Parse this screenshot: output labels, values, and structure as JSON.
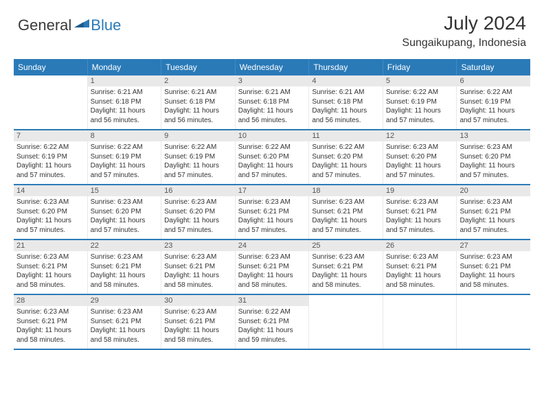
{
  "brand": {
    "general": "General",
    "blue": "Blue"
  },
  "title": "July 2024",
  "location": "Sungaikupang, Indonesia",
  "colors": {
    "header_bg": "#2a7ab8",
    "header_text": "#ffffff",
    "daynum_bg": "#e9e9e9",
    "text": "#333333",
    "week_border": "#2a7ab8"
  },
  "day_headers": [
    "Sunday",
    "Monday",
    "Tuesday",
    "Wednesday",
    "Thursday",
    "Friday",
    "Saturday"
  ],
  "weeks": [
    [
      {
        "empty": true
      },
      {
        "day": "1",
        "sunrise": "Sunrise: 6:21 AM",
        "sunset": "Sunset: 6:18 PM",
        "daylight1": "Daylight: 11 hours",
        "daylight2": "and 56 minutes."
      },
      {
        "day": "2",
        "sunrise": "Sunrise: 6:21 AM",
        "sunset": "Sunset: 6:18 PM",
        "daylight1": "Daylight: 11 hours",
        "daylight2": "and 56 minutes."
      },
      {
        "day": "3",
        "sunrise": "Sunrise: 6:21 AM",
        "sunset": "Sunset: 6:18 PM",
        "daylight1": "Daylight: 11 hours",
        "daylight2": "and 56 minutes."
      },
      {
        "day": "4",
        "sunrise": "Sunrise: 6:21 AM",
        "sunset": "Sunset: 6:18 PM",
        "daylight1": "Daylight: 11 hours",
        "daylight2": "and 56 minutes."
      },
      {
        "day": "5",
        "sunrise": "Sunrise: 6:22 AM",
        "sunset": "Sunset: 6:19 PM",
        "daylight1": "Daylight: 11 hours",
        "daylight2": "and 57 minutes."
      },
      {
        "day": "6",
        "sunrise": "Sunrise: 6:22 AM",
        "sunset": "Sunset: 6:19 PM",
        "daylight1": "Daylight: 11 hours",
        "daylight2": "and 57 minutes."
      }
    ],
    [
      {
        "day": "7",
        "sunrise": "Sunrise: 6:22 AM",
        "sunset": "Sunset: 6:19 PM",
        "daylight1": "Daylight: 11 hours",
        "daylight2": "and 57 minutes."
      },
      {
        "day": "8",
        "sunrise": "Sunrise: 6:22 AM",
        "sunset": "Sunset: 6:19 PM",
        "daylight1": "Daylight: 11 hours",
        "daylight2": "and 57 minutes."
      },
      {
        "day": "9",
        "sunrise": "Sunrise: 6:22 AM",
        "sunset": "Sunset: 6:19 PM",
        "daylight1": "Daylight: 11 hours",
        "daylight2": "and 57 minutes."
      },
      {
        "day": "10",
        "sunrise": "Sunrise: 6:22 AM",
        "sunset": "Sunset: 6:20 PM",
        "daylight1": "Daylight: 11 hours",
        "daylight2": "and 57 minutes."
      },
      {
        "day": "11",
        "sunrise": "Sunrise: 6:22 AM",
        "sunset": "Sunset: 6:20 PM",
        "daylight1": "Daylight: 11 hours",
        "daylight2": "and 57 minutes."
      },
      {
        "day": "12",
        "sunrise": "Sunrise: 6:23 AM",
        "sunset": "Sunset: 6:20 PM",
        "daylight1": "Daylight: 11 hours",
        "daylight2": "and 57 minutes."
      },
      {
        "day": "13",
        "sunrise": "Sunrise: 6:23 AM",
        "sunset": "Sunset: 6:20 PM",
        "daylight1": "Daylight: 11 hours",
        "daylight2": "and 57 minutes."
      }
    ],
    [
      {
        "day": "14",
        "sunrise": "Sunrise: 6:23 AM",
        "sunset": "Sunset: 6:20 PM",
        "daylight1": "Daylight: 11 hours",
        "daylight2": "and 57 minutes."
      },
      {
        "day": "15",
        "sunrise": "Sunrise: 6:23 AM",
        "sunset": "Sunset: 6:20 PM",
        "daylight1": "Daylight: 11 hours",
        "daylight2": "and 57 minutes."
      },
      {
        "day": "16",
        "sunrise": "Sunrise: 6:23 AM",
        "sunset": "Sunset: 6:20 PM",
        "daylight1": "Daylight: 11 hours",
        "daylight2": "and 57 minutes."
      },
      {
        "day": "17",
        "sunrise": "Sunrise: 6:23 AM",
        "sunset": "Sunset: 6:21 PM",
        "daylight1": "Daylight: 11 hours",
        "daylight2": "and 57 minutes."
      },
      {
        "day": "18",
        "sunrise": "Sunrise: 6:23 AM",
        "sunset": "Sunset: 6:21 PM",
        "daylight1": "Daylight: 11 hours",
        "daylight2": "and 57 minutes."
      },
      {
        "day": "19",
        "sunrise": "Sunrise: 6:23 AM",
        "sunset": "Sunset: 6:21 PM",
        "daylight1": "Daylight: 11 hours",
        "daylight2": "and 57 minutes."
      },
      {
        "day": "20",
        "sunrise": "Sunrise: 6:23 AM",
        "sunset": "Sunset: 6:21 PM",
        "daylight1": "Daylight: 11 hours",
        "daylight2": "and 57 minutes."
      }
    ],
    [
      {
        "day": "21",
        "sunrise": "Sunrise: 6:23 AM",
        "sunset": "Sunset: 6:21 PM",
        "daylight1": "Daylight: 11 hours",
        "daylight2": "and 58 minutes."
      },
      {
        "day": "22",
        "sunrise": "Sunrise: 6:23 AM",
        "sunset": "Sunset: 6:21 PM",
        "daylight1": "Daylight: 11 hours",
        "daylight2": "and 58 minutes."
      },
      {
        "day": "23",
        "sunrise": "Sunrise: 6:23 AM",
        "sunset": "Sunset: 6:21 PM",
        "daylight1": "Daylight: 11 hours",
        "daylight2": "and 58 minutes."
      },
      {
        "day": "24",
        "sunrise": "Sunrise: 6:23 AM",
        "sunset": "Sunset: 6:21 PM",
        "daylight1": "Daylight: 11 hours",
        "daylight2": "and 58 minutes."
      },
      {
        "day": "25",
        "sunrise": "Sunrise: 6:23 AM",
        "sunset": "Sunset: 6:21 PM",
        "daylight1": "Daylight: 11 hours",
        "daylight2": "and 58 minutes."
      },
      {
        "day": "26",
        "sunrise": "Sunrise: 6:23 AM",
        "sunset": "Sunset: 6:21 PM",
        "daylight1": "Daylight: 11 hours",
        "daylight2": "and 58 minutes."
      },
      {
        "day": "27",
        "sunrise": "Sunrise: 6:23 AM",
        "sunset": "Sunset: 6:21 PM",
        "daylight1": "Daylight: 11 hours",
        "daylight2": "and 58 minutes."
      }
    ],
    [
      {
        "day": "28",
        "sunrise": "Sunrise: 6:23 AM",
        "sunset": "Sunset: 6:21 PM",
        "daylight1": "Daylight: 11 hours",
        "daylight2": "and 58 minutes."
      },
      {
        "day": "29",
        "sunrise": "Sunrise: 6:23 AM",
        "sunset": "Sunset: 6:21 PM",
        "daylight1": "Daylight: 11 hours",
        "daylight2": "and 58 minutes."
      },
      {
        "day": "30",
        "sunrise": "Sunrise: 6:23 AM",
        "sunset": "Sunset: 6:21 PM",
        "daylight1": "Daylight: 11 hours",
        "daylight2": "and 58 minutes."
      },
      {
        "day": "31",
        "sunrise": "Sunrise: 6:22 AM",
        "sunset": "Sunset: 6:21 PM",
        "daylight1": "Daylight: 11 hours",
        "daylight2": "and 59 minutes."
      },
      {
        "empty": true
      },
      {
        "empty": true
      },
      {
        "empty": true
      }
    ]
  ]
}
